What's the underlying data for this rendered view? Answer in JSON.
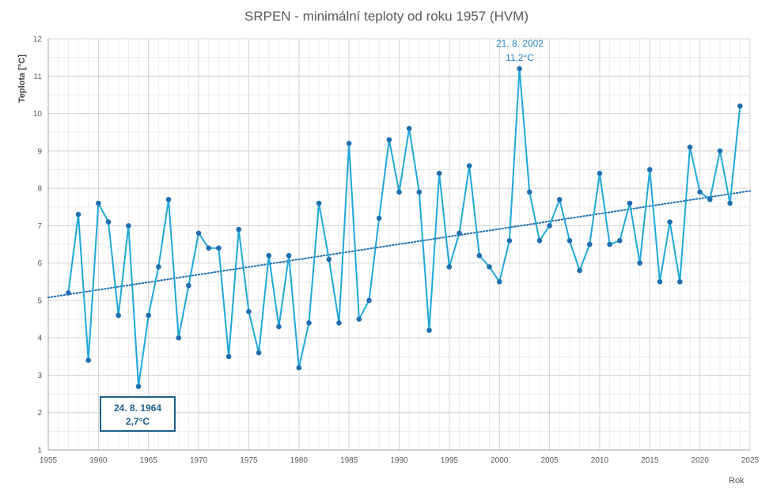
{
  "chart_data": {
    "type": "line",
    "title": "SRPEN - minimální teploty od roku 1957 (HVM)",
    "xlabel": "Rok",
    "ylabel": "Teplota [°C]",
    "xlim": [
      1955,
      2025
    ],
    "ylim": [
      1,
      12
    ],
    "x_ticks": [
      1955,
      1960,
      1965,
      1970,
      1975,
      1980,
      1985,
      1990,
      1995,
      2000,
      2005,
      2010,
      2015,
      2020,
      2025
    ],
    "y_ticks": [
      1,
      2,
      3,
      4,
      5,
      6,
      7,
      8,
      9,
      10,
      11,
      12
    ],
    "grid": true,
    "series": [
      {
        "x": [
          1957,
          1958,
          1959,
          1960,
          1961,
          1962,
          1963,
          1964,
          1965,
          1966,
          1967,
          1968,
          1969,
          1970,
          1971,
          1972,
          1973,
          1974,
          1975,
          1976,
          1977,
          1978,
          1979,
          1980,
          1981,
          1982,
          1983,
          1984,
          1985,
          1986,
          1987,
          1988,
          1989,
          1990,
          1991,
          1992,
          1993,
          1994,
          1995,
          1996,
          1997,
          1998,
          1999,
          2000,
          2001,
          2002,
          2003,
          2004,
          2005,
          2006,
          2007,
          2008,
          2009,
          2010,
          2011,
          2012,
          2013,
          2014,
          2015,
          2016,
          2017,
          2018,
          2019,
          2020,
          2021,
          2022,
          2023,
          2024
        ],
        "values": [
          5.2,
          7.3,
          3.4,
          7.6,
          7.1,
          4.6,
          7.0,
          2.7,
          4.6,
          5.9,
          7.7,
          4.0,
          5.4,
          6.8,
          6.4,
          6.4,
          3.5,
          6.9,
          4.7,
          3.6,
          6.2,
          4.3,
          6.2,
          3.2,
          4.4,
          7.6,
          6.1,
          4.4,
          9.2,
          4.5,
          5.0,
          7.2,
          9.3,
          7.9,
          9.6,
          7.9,
          4.2,
          8.4,
          5.9,
          6.8,
          8.6,
          6.2,
          5.9,
          5.5,
          6.6,
          11.2,
          7.9,
          6.6,
          7.0,
          7.7,
          6.6,
          5.8,
          6.5,
          8.4,
          6.5,
          6.6,
          7.6,
          6.0,
          8.5,
          5.5,
          7.1,
          5.5,
          9.1,
          7.9,
          7.7,
          9.0,
          7.6,
          10.2
        ],
        "color": "#1fa8d8",
        "marker_color": "#1f6fb0"
      }
    ],
    "trendline": {
      "type": "linear",
      "x": [
        1955,
        2025
      ],
      "y": [
        5.08,
        7.93
      ],
      "color": "#1f6fb0",
      "style": "dotted"
    },
    "annotations": [
      {
        "text_line1": "21. 8. 2002",
        "text_line2": "11,2°C",
        "x": 2002,
        "y": 11.2,
        "color": "#2a86c4"
      },
      {
        "text_line1": "24. 8. 1964",
        "text_line2": "2,7°C",
        "x": 1964,
        "y": 2.7,
        "color": "#1f5f8b",
        "boxed": true
      }
    ]
  }
}
